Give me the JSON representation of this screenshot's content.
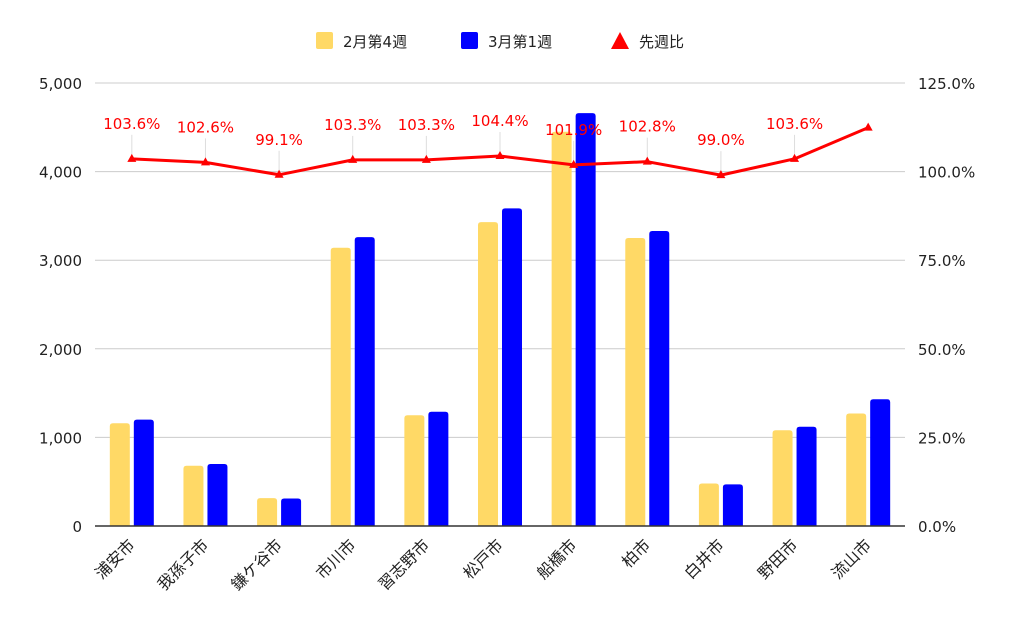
{
  "chart_data": {
    "type": "bar",
    "categories": [
      "浦安市",
      "我孫子市",
      "鎌ケ谷市",
      "市川市",
      "習志野市",
      "松戸市",
      "船橋市",
      "柏市",
      "白井市",
      "野田市",
      "流山市"
    ],
    "series": [
      {
        "name": "2月第4週",
        "type": "bar",
        "axis": "left",
        "color": "#ffd966",
        "values": [
          1160,
          680,
          315,
          3140,
          1250,
          3430,
          4450,
          3250,
          480,
          1080,
          1270
        ]
      },
      {
        "name": "3月第1週",
        "type": "bar",
        "axis": "left",
        "color": "#0000ff",
        "values": [
          1200,
          700,
          310,
          3260,
          1290,
          3585,
          4660,
          3330,
          470,
          1120,
          1430
        ]
      },
      {
        "name": "先週比",
        "type": "line",
        "axis": "right",
        "color": "#ff0000",
        "values": [
          103.6,
          102.6,
          99.1,
          103.3,
          103.3,
          104.4,
          101.9,
          102.8,
          99.0,
          103.6,
          112.4
        ],
        "labels": [
          "103.6%",
          "102.6%",
          "99.1%",
          "103.3%",
          "103.3%",
          "104.4%",
          "101.9%",
          "102.8%",
          "99.0%",
          "103.6%",
          ""
        ]
      }
    ],
    "y_left": {
      "min": 0,
      "max": 5000,
      "ticks": [
        "0",
        "1,000",
        "2,000",
        "3,000",
        "4,000",
        "5,000"
      ]
    },
    "y_right": {
      "min": 0,
      "max": 125,
      "ticks": [
        "0.0%",
        "25.0%",
        "50.0%",
        "75.0%",
        "100.0%",
        "125.0%"
      ]
    },
    "grid": true,
    "legend_position": "top"
  }
}
